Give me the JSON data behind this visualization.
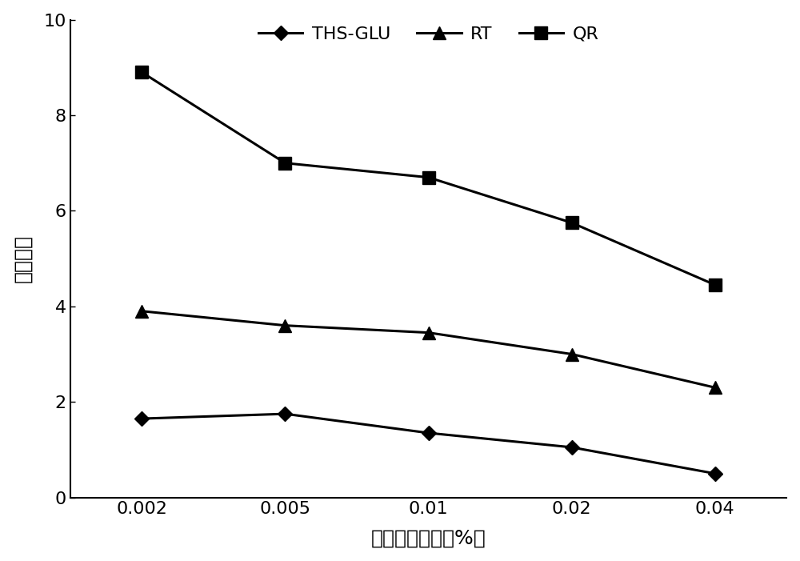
{
  "x_positions": [
    0,
    1,
    2,
    3,
    4
  ],
  "x_tick_labels": [
    "0.002",
    "0.005",
    "0.01",
    "0.02",
    "0.04"
  ],
  "THS_GLU": [
    1.65,
    1.75,
    1.35,
    1.05,
    0.5
  ],
  "RT": [
    3.9,
    3.6,
    3.45,
    3.0,
    2.3
  ],
  "QR": [
    8.9,
    7.0,
    6.7,
    5.75,
    4.45
  ],
  "ylabel": "响应面积",
  "xlabel": "甲酸添加浓度（%）",
  "ylim": [
    0,
    10
  ],
  "yticks": [
    0,
    2,
    4,
    6,
    8,
    10
  ],
  "legend_labels": [
    "THS-GLU",
    "RT",
    "QR"
  ],
  "line_color": "#000000",
  "background_color": "#ffffff",
  "label_fontsize": 18,
  "tick_fontsize": 16,
  "legend_fontsize": 16,
  "linewidth": 2.2,
  "markersize": 11
}
